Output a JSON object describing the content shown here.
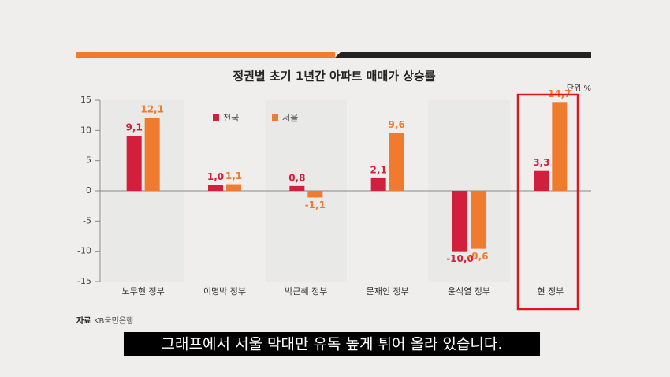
{
  "chart_data": {
    "type": "bar",
    "title": "정권별 초기 1년간 아파트 매매가 상승률",
    "unit": "단위 %",
    "source_label": "자료",
    "source": "KB국민은행",
    "categories": [
      "노무현 정부",
      "이명박 정부",
      "박근혜 정부",
      "문재인 정부",
      "윤석열 정부",
      "현 정부"
    ],
    "series": [
      {
        "name": "전국",
        "color": "#d21f3c",
        "values": [
          9.1,
          1.0,
          0.8,
          2.1,
          -10.0,
          3.3
        ],
        "value_labels": [
          "9,1",
          "1,0",
          "0,8",
          "2,1",
          "-10,0",
          "3,3"
        ]
      },
      {
        "name": "서울",
        "color": "#f07b2e",
        "values": [
          12.1,
          1.1,
          -1.1,
          9.6,
          -9.6,
          14.7
        ],
        "value_labels": [
          "12,1",
          "1,1",
          "-1,1",
          "9,6",
          "-9,6",
          "14,7"
        ]
      }
    ],
    "ylim": [
      -15,
      15
    ],
    "yticks": [
      15,
      10,
      5,
      0,
      -5,
      -10,
      -15
    ]
  },
  "caption": "그래프에서 서울 막대만 유독 높게 튀어 올라 있습니다."
}
